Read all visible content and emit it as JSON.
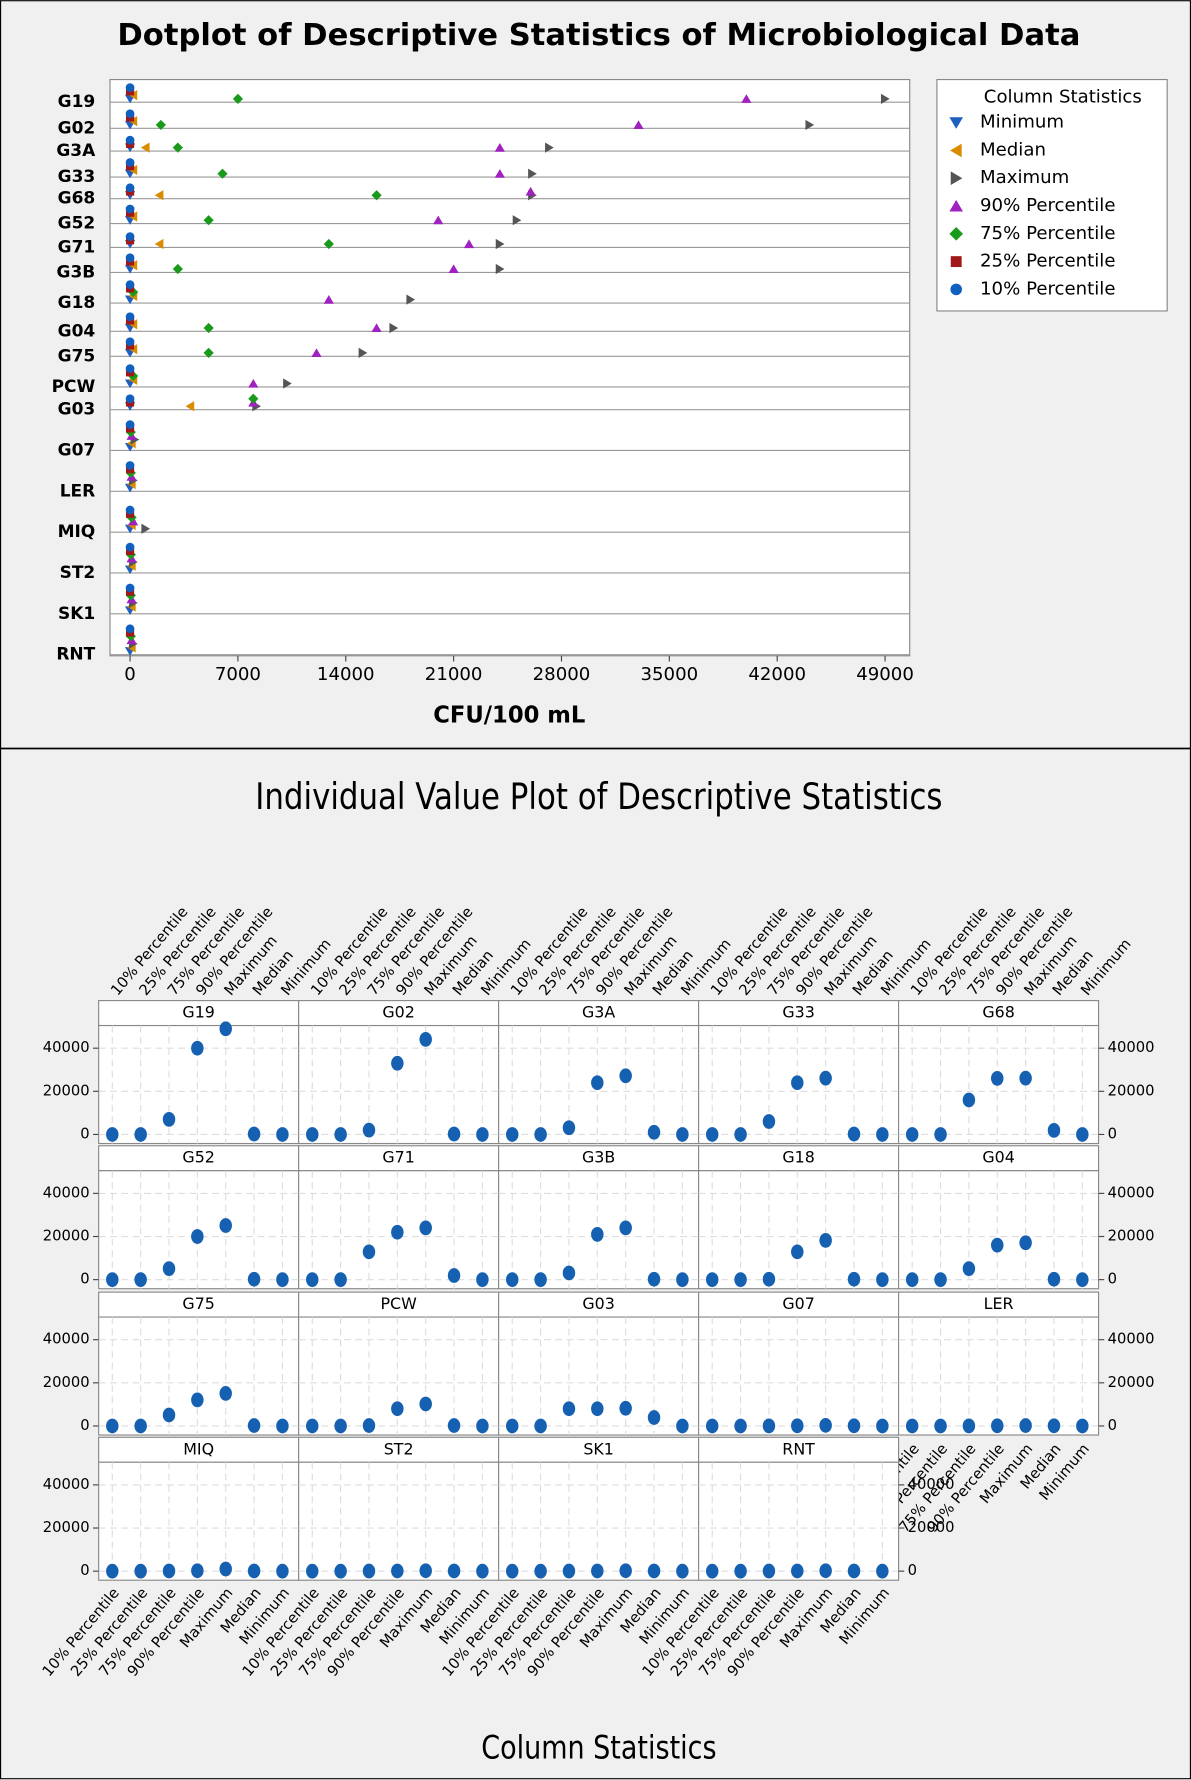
{
  "chart_data": [
    {
      "type": "dotplot",
      "title": "Dotplot of Descriptive Statistics of Microbiological Data",
      "xlabel": "CFU/100 mL",
      "legend_title": "Column Statistics",
      "legend": "right",
      "categories": [
        "G19",
        "G02",
        "G3A",
        "G33",
        "G68",
        "G52",
        "G71",
        "G3B",
        "G18",
        "G04",
        "G75",
        "PCW",
        "G03",
        "G07",
        "LER",
        "MIQ",
        "ST2",
        "SK1",
        "RNT"
      ],
      "xlim": [
        -1300,
        50600
      ],
      "xticks": [
        0,
        7000,
        14000,
        21000,
        28000,
        35000,
        42000,
        49000
      ],
      "grid": true,
      "series": [
        {
          "name": "Minimum",
          "color": "#1f5fbf",
          "marker": "triangle-down",
          "values": [
            0,
            0,
            0,
            0,
            0,
            0,
            0,
            0,
            0,
            0,
            0,
            0,
            0,
            0,
            0,
            0,
            0,
            0,
            0
          ]
        },
        {
          "name": "Median",
          "color": "#d98c00",
          "marker": "triangle-left",
          "values": [
            200,
            200,
            1000,
            200,
            1900,
            200,
            1900,
            200,
            200,
            200,
            200,
            200,
            3900,
            100,
            100,
            100,
            100,
            100,
            100
          ]
        },
        {
          "name": "Maximum",
          "color": "#555555",
          "marker": "triangle-right",
          "values": [
            49000,
            44100,
            27200,
            26100,
            26100,
            25100,
            24000,
            24000,
            18200,
            17100,
            15100,
            10200,
            8200,
            300,
            200,
            1000,
            200,
            200,
            200
          ]
        },
        {
          "name": "90% Percentile",
          "color": "#a020c0",
          "marker": "triangle-up",
          "values": [
            40000,
            33000,
            24000,
            24000,
            26000,
            20000,
            22000,
            21000,
            12900,
            16000,
            12100,
            8000,
            8000,
            100,
            100,
            200,
            100,
            100,
            100
          ]
        },
        {
          "name": "75% Percentile",
          "color": "#1a9a1a",
          "marker": "diamond",
          "values": [
            7000,
            2000,
            3100,
            6000,
            16000,
            5100,
            12900,
            3100,
            200,
            5100,
            5100,
            200,
            8000,
            50,
            50,
            100,
            50,
            50,
            50
          ]
        },
        {
          "name": "25% Percentile",
          "color": "#a01818",
          "marker": "square",
          "values": [
            0,
            0,
            0,
            0,
            0,
            0,
            0,
            0,
            0,
            0,
            0,
            0,
            0,
            0,
            0,
            0,
            0,
            0,
            0
          ]
        },
        {
          "name": "10% Percentile",
          "color": "#1060c0",
          "marker": "circle",
          "values": [
            0,
            0,
            0,
            0,
            0,
            0,
            0,
            0,
            0,
            0,
            0,
            0,
            0,
            0,
            0,
            0,
            0,
            0,
            0
          ]
        }
      ]
    },
    {
      "type": "individual_value",
      "title": "Individual Value Plot of Descriptive Statistics",
      "xlabel": "Column Statistics",
      "color": "#1560b0",
      "categories": [
        "10% Percentile",
        "25% Percentile",
        "75% Percentile",
        "90% Percentile",
        "Maximum",
        "Median",
        "Minimum"
      ],
      "ylim": [
        -4200,
        50500
      ],
      "yticks": [
        0,
        20000,
        40000
      ],
      "grid": true,
      "panels": [
        {
          "name": "G19",
          "values": [
            0,
            0,
            7000,
            40000,
            49000,
            200,
            0
          ]
        },
        {
          "name": "G02",
          "values": [
            0,
            0,
            2000,
            33000,
            44100,
            200,
            0
          ]
        },
        {
          "name": "G3A",
          "values": [
            0,
            0,
            3100,
            24000,
            27200,
            1000,
            0
          ]
        },
        {
          "name": "G33",
          "values": [
            0,
            0,
            6000,
            24000,
            26100,
            200,
            0
          ]
        },
        {
          "name": "G68",
          "values": [
            0,
            0,
            16000,
            26000,
            26100,
            1900,
            0
          ]
        },
        {
          "name": "G52",
          "values": [
            0,
            0,
            5100,
            20000,
            25100,
            200,
            0
          ]
        },
        {
          "name": "G71",
          "values": [
            0,
            0,
            12900,
            22000,
            24000,
            1900,
            0
          ]
        },
        {
          "name": "G3B",
          "values": [
            0,
            0,
            3100,
            21000,
            24000,
            200,
            0
          ]
        },
        {
          "name": "G18",
          "values": [
            0,
            0,
            200,
            12900,
            18200,
            200,
            0
          ]
        },
        {
          "name": "G04",
          "values": [
            0,
            0,
            5100,
            16000,
            17100,
            200,
            0
          ]
        },
        {
          "name": "G75",
          "values": [
            0,
            0,
            5100,
            12100,
            15100,
            200,
            0
          ]
        },
        {
          "name": "PCW",
          "values": [
            0,
            0,
            200,
            8000,
            10200,
            200,
            0
          ]
        },
        {
          "name": "G03",
          "values": [
            0,
            0,
            8000,
            8000,
            8200,
            3900,
            0
          ]
        },
        {
          "name": "G07",
          "values": [
            0,
            0,
            50,
            100,
            300,
            100,
            0
          ]
        },
        {
          "name": "LER",
          "values": [
            0,
            0,
            50,
            100,
            200,
            100,
            0
          ]
        },
        {
          "name": "MIQ",
          "values": [
            0,
            0,
            100,
            200,
            1000,
            100,
            0
          ]
        },
        {
          "name": "ST2",
          "values": [
            0,
            0,
            50,
            100,
            200,
            100,
            0
          ]
        },
        {
          "name": "SK1",
          "values": [
            0,
            0,
            50,
            100,
            200,
            100,
            0
          ]
        },
        {
          "name": "RNT",
          "values": [
            0,
            0,
            50,
            100,
            200,
            100,
            0
          ]
        }
      ]
    }
  ]
}
